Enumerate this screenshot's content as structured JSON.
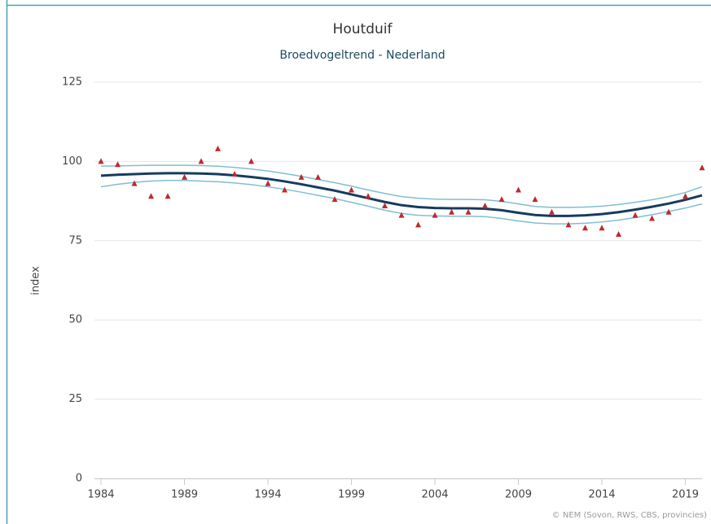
{
  "chart_data": {
    "type": "line",
    "title": "Houtduif",
    "subtitle": "Broedvogeltrend - Nederland",
    "y_label": "index",
    "credit": "© NEM (Sovon, RWS, CBS, provincies)",
    "x": [
      1984,
      1985,
      1986,
      1987,
      1988,
      1989,
      1990,
      1991,
      1992,
      1993,
      1994,
      1995,
      1996,
      1997,
      1998,
      1999,
      2000,
      2001,
      2002,
      2003,
      2004,
      2005,
      2006,
      2007,
      2008,
      2009,
      2010,
      2011,
      2012,
      2013,
      2014,
      2015,
      2016,
      2017,
      2018,
      2019,
      2020
    ],
    "xlim": [
      1984,
      2020
    ],
    "xticks": [
      1984,
      1989,
      1994,
      1999,
      2004,
      2009,
      2014,
      2019
    ],
    "ylim": [
      0,
      125
    ],
    "yticks": [
      0,
      25,
      50,
      75,
      100,
      125
    ],
    "grid": true,
    "series": [
      {
        "color": "#7fbfd0",
        "width": 1.5,
        "mode": "line",
        "values": [
          98.5,
          98.6,
          98.7,
          98.8,
          98.8,
          98.8,
          98.7,
          98.5,
          98.1,
          97.6,
          97.0,
          96.2,
          95.3,
          94.3,
          93.3,
          92.2,
          91.0,
          89.9,
          88.9,
          88.4,
          88.1,
          88.0,
          88.0,
          87.9,
          87.4,
          86.6,
          85.8,
          85.5,
          85.5,
          85.6,
          85.9,
          86.4,
          87.1,
          87.9,
          88.9,
          90.2,
          92.0
        ]
      },
      {
        "color": "#7fbfd0",
        "width": 1.5,
        "mode": "line",
        "values": [
          92.0,
          92.8,
          93.4,
          93.8,
          94.0,
          94.0,
          93.8,
          93.6,
          93.2,
          92.7,
          92.0,
          91.2,
          90.3,
          89.3,
          88.3,
          87.1,
          85.9,
          84.6,
          83.6,
          83.0,
          82.8,
          82.7,
          82.7,
          82.6,
          82.0,
          81.2,
          80.6,
          80.3,
          80.3,
          80.5,
          80.9,
          81.5,
          82.3,
          83.2,
          84.2,
          85.3,
          86.6
        ]
      },
      {
        "color": "#143c5e",
        "width": 3,
        "mode": "line",
        "values": [
          95.5,
          95.8,
          96.0,
          96.2,
          96.3,
          96.3,
          96.2,
          96.0,
          95.6,
          95.1,
          94.5,
          93.7,
          92.8,
          91.8,
          90.8,
          89.6,
          88.4,
          87.2,
          86.2,
          85.6,
          85.3,
          85.2,
          85.2,
          85.1,
          84.6,
          83.8,
          83.1,
          82.8,
          82.8,
          83.0,
          83.4,
          84.0,
          84.8,
          85.7,
          86.7,
          87.9,
          89.3
        ]
      },
      {
        "color": "#c0282d",
        "mode": "markers",
        "values": [
          100,
          99,
          93,
          89,
          89,
          95,
          100,
          104,
          96,
          100,
          93,
          91,
          95,
          95,
          88,
          91,
          89,
          86,
          83,
          80,
          83,
          84,
          84,
          86,
          88,
          91,
          88,
          84,
          80,
          79,
          79,
          77,
          83,
          82,
          84,
          89,
          98
        ]
      }
    ]
  }
}
